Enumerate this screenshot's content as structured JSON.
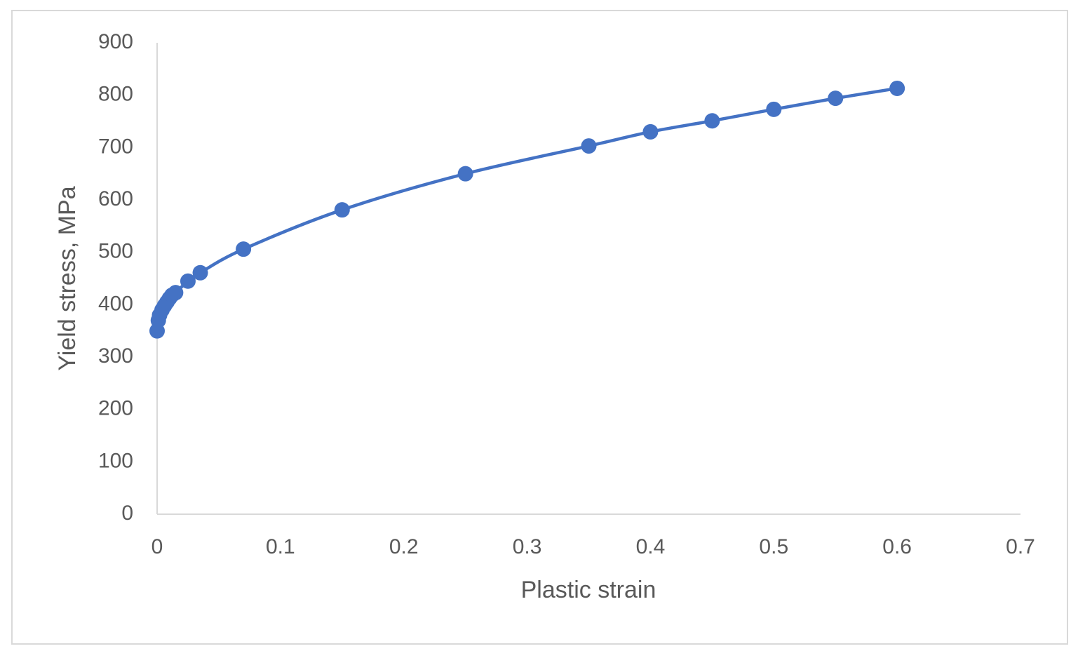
{
  "chart_data": {
    "type": "scatter",
    "xlabel": "Plastic strain",
    "ylabel": "Yield stress, MPa",
    "x": [
      0,
      0.001,
      0.002,
      0.004,
      0.006,
      0.008,
      0.01,
      0.012,
      0.015,
      0.025,
      0.035,
      0.07,
      0.15,
      0.25,
      0.35,
      0.4,
      0.45,
      0.5,
      0.55,
      0.6
    ],
    "values": [
      350,
      370,
      380,
      390,
      398,
      405,
      412,
      418,
      423,
      445,
      461,
      506,
      581,
      650,
      703,
      730,
      751,
      773,
      794,
      813
    ],
    "color": "#4472c4",
    "smooth": true,
    "markers": true,
    "xlim": [
      0,
      0.7
    ],
    "xticks": [
      0,
      0.1,
      0.2,
      0.3,
      0.4,
      0.5,
      0.6,
      0.7
    ],
    "ylim": [
      0,
      900
    ],
    "yticks": [
      0,
      100,
      200,
      300,
      400,
      500,
      600,
      700,
      800,
      900
    ],
    "grid": false
  }
}
